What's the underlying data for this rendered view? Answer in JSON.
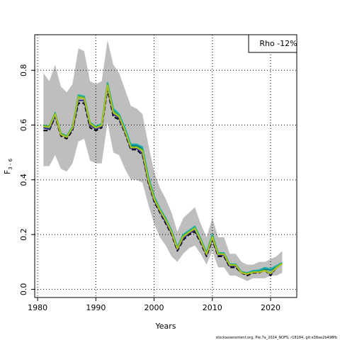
{
  "chart_data": {
    "type": "line",
    "xlabel": "Years",
    "ylabel_main": "F",
    "ylabel_sub": "3 - 6",
    "xlim": [
      1979.5,
      2024.5
    ],
    "ylim": [
      -0.03,
      0.93
    ],
    "x_ticks": [
      1980,
      1990,
      2000,
      2010,
      2020
    ],
    "y_ticks": [
      0.0,
      0.2,
      0.4,
      0.6,
      0.8
    ],
    "y_tick_labels": [
      "0.0",
      "0.2",
      "0.4",
      "0.6",
      "0.8"
    ],
    "grid": true,
    "legend_text": "Rho -12%",
    "footer_text": "stockassessment.org, Ple.7a_2024_NOFS, r18184, git:e38ae2b498fb",
    "x": [
      1981,
      1982,
      1983,
      1984,
      1985,
      1986,
      1987,
      1988,
      1989,
      1990,
      1991,
      1992,
      1993,
      1994,
      1995,
      1996,
      1997,
      1998,
      1999,
      2000,
      2001,
      2002,
      2003,
      2004,
      2005,
      2006,
      2007,
      2008,
      2009,
      2010,
      2011,
      2012,
      2013,
      2014,
      2015,
      2016,
      2017,
      2018,
      2019,
      2020,
      2021,
      2022
    ],
    "band": {
      "color": "#bebebe",
      "x": [
        1981,
        1982,
        1983,
        1984,
        1985,
        1986,
        1987,
        1988,
        1989,
        1990,
        1991,
        1992,
        1993,
        1994,
        1995,
        1996,
        1997,
        1998,
        1999,
        2000,
        2001,
        2002,
        2003,
        2004,
        2005,
        2006,
        2007,
        2008,
        2009,
        2010,
        2011,
        2012,
        2013,
        2014,
        2015,
        2016,
        2017,
        2018,
        2019,
        2020,
        2021,
        2022
      ],
      "upper": [
        0.79,
        0.76,
        0.82,
        0.74,
        0.72,
        0.75,
        0.88,
        0.87,
        0.76,
        0.75,
        0.76,
        0.91,
        0.82,
        0.79,
        0.73,
        0.67,
        0.66,
        0.64,
        0.53,
        0.43,
        0.37,
        0.33,
        0.28,
        0.21,
        0.26,
        0.28,
        0.3,
        0.24,
        0.19,
        0.26,
        0.19,
        0.19,
        0.13,
        0.13,
        0.1,
        0.09,
        0.09,
        0.1,
        0.1,
        0.11,
        0.12,
        0.14
      ],
      "lower": [
        0.45,
        0.45,
        0.49,
        0.44,
        0.43,
        0.46,
        0.54,
        0.55,
        0.47,
        0.46,
        0.46,
        0.61,
        0.5,
        0.49,
        0.44,
        0.4,
        0.4,
        0.39,
        0.31,
        0.24,
        0.19,
        0.16,
        0.12,
        0.1,
        0.13,
        0.15,
        0.16,
        0.13,
        0.09,
        0.14,
        0.08,
        0.08,
        0.05,
        0.05,
        0.04,
        0.03,
        0.04,
        0.04,
        0.04,
        0.05,
        0.05,
        0.06
      ]
    },
    "series": [
      {
        "color": "#000000",
        "dash": true,
        "values": [
          0.58,
          0.58,
          0.63,
          0.56,
          0.55,
          0.58,
          0.68,
          0.68,
          0.59,
          0.58,
          0.59,
          0.73,
          0.63,
          0.62,
          0.57,
          0.51,
          0.51,
          0.49,
          0.39,
          0.32,
          0.28,
          0.24,
          0.2,
          0.14,
          0.18,
          0.2,
          0.21,
          0.17,
          0.12,
          0.18,
          0.12,
          0.12,
          0.08,
          0.08,
          0.06,
          0.05,
          0.06,
          0.06,
          0.07,
          0.05,
          0.08,
          0.095
        ]
      },
      {
        "color": "#2e3192",
        "dash": false,
        "values": [
          0.59,
          0.585,
          0.635,
          0.565,
          0.555,
          0.585,
          0.69,
          0.69,
          0.6,
          0.585,
          0.595,
          0.74,
          0.64,
          0.625,
          0.575,
          0.515,
          0.515,
          0.495,
          0.395,
          0.325,
          0.285,
          0.245,
          0.205,
          0.145,
          0.185,
          0.205,
          0.215,
          0.175,
          0.125,
          0.185,
          0.125,
          0.125,
          0.085,
          0.085,
          0.06,
          0.055,
          0.062,
          0.064,
          0.072,
          0.055,
          0.078,
          0.095
        ]
      },
      {
        "color": "#0b7a8a",
        "dash": false,
        "values": [
          0.595,
          0.59,
          0.64,
          0.57,
          0.56,
          0.59,
          0.7,
          0.7,
          0.605,
          0.59,
          0.6,
          0.75,
          0.655,
          0.635,
          0.585,
          0.525,
          0.525,
          0.515,
          0.41,
          0.335,
          0.29,
          0.255,
          0.21,
          0.15,
          0.195,
          0.21,
          0.225,
          0.18,
          0.13,
          0.195,
          0.13,
          0.13,
          0.09,
          0.09,
          0.062,
          0.058,
          0.064,
          0.066,
          0.075,
          0.07,
          0.083,
          0.096
        ]
      },
      {
        "color": "#20b2aa",
        "dash": false,
        "values": [
          0.6,
          0.595,
          0.645,
          0.57,
          0.56,
          0.595,
          0.71,
          0.705,
          0.61,
          0.595,
          0.605,
          0.755,
          0.66,
          0.64,
          0.59,
          0.53,
          0.53,
          0.52,
          0.415,
          0.34,
          0.295,
          0.26,
          0.215,
          0.155,
          0.2,
          0.215,
          0.23,
          0.185,
          0.135,
          0.2,
          0.133,
          0.133,
          0.092,
          0.092,
          0.064,
          0.06,
          0.068,
          0.07,
          0.079,
          0.074,
          0.086,
          0.097
        ]
      },
      {
        "color": "#3cb043",
        "dash": false,
        "values": [
          0.598,
          0.595,
          0.643,
          0.568,
          0.558,
          0.592,
          0.705,
          0.7,
          0.608,
          0.592,
          0.6,
          0.75,
          0.65,
          0.635,
          0.58,
          0.52,
          0.52,
          0.51,
          0.405,
          0.335,
          0.29,
          0.255,
          0.21,
          0.15,
          0.195,
          0.21,
          0.225,
          0.18,
          0.13,
          0.195,
          0.13,
          0.13,
          0.09,
          0.09,
          0.062,
          0.058,
          0.064,
          0.064,
          0.07,
          0.06,
          0.08,
          0.095
        ]
      },
      {
        "color": "#b5c416",
        "dash": false,
        "values": [
          0.595,
          0.592,
          0.64,
          0.565,
          0.556,
          0.59,
          0.702,
          0.697,
          0.605,
          0.59,
          0.598,
          0.745,
          0.645,
          0.63,
          0.578,
          0.518,
          0.518,
          0.505,
          0.4,
          0.33,
          0.288,
          0.252,
          0.208,
          0.148,
          0.192,
          0.208,
          0.222,
          0.178,
          0.128,
          0.19,
          0.128,
          0.128,
          0.088,
          0.088,
          0.06,
          0.056,
          0.062,
          0.062,
          0.068,
          0.058,
          0.078,
          0.094
        ]
      }
    ]
  }
}
